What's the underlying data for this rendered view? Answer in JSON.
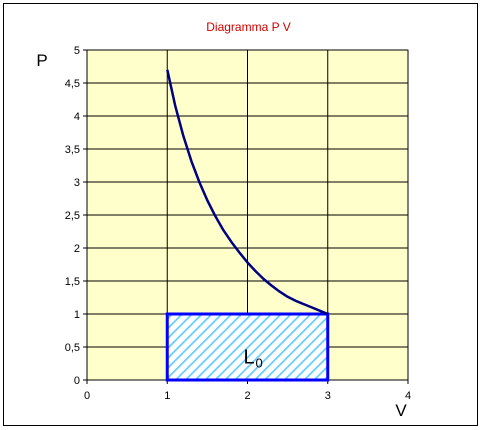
{
  "chart_data": {
    "type": "line",
    "title": "Diagramma P V",
    "xlabel": "V",
    "ylabel": "P",
    "xlim": [
      0,
      4
    ],
    "ylim": [
      0,
      5
    ],
    "x_ticks": [
      "0",
      "1",
      "2",
      "3",
      "4"
    ],
    "y_ticks": [
      "0",
      "0,5",
      "1",
      "1,5",
      "2",
      "2,5",
      "3",
      "3,5",
      "4",
      "4,5",
      "5"
    ],
    "grid": true,
    "series": [
      {
        "x": [
          1.0,
          1.1,
          1.2,
          1.3,
          1.4,
          1.5,
          1.6,
          1.7,
          1.8,
          1.9,
          2.0,
          2.1,
          2.2,
          2.3,
          2.4,
          2.5,
          2.6,
          2.7,
          2.8,
          2.9,
          3.0
        ],
        "y": [
          4.7,
          4.15,
          3.7,
          3.32,
          3.0,
          2.72,
          2.48,
          2.27,
          2.09,
          1.93,
          1.78,
          1.65,
          1.53,
          1.43,
          1.34,
          1.26,
          1.2,
          1.15,
          1.1,
          1.05,
          1.0
        ]
      }
    ],
    "region": {
      "x": [
        1,
        3
      ],
      "y": [
        0,
        1
      ],
      "fill": "hatched"
    },
    "annotation": {
      "text": "L",
      "subscript": "0",
      "x": 2.05,
      "y": 0.25
    },
    "colors": {
      "title": "#cc0000",
      "plot_background": "#ffffcc",
      "grid": "#000000",
      "curve": "#000080",
      "region_border": "#0000ff",
      "hatch": "#66ccff"
    }
  }
}
